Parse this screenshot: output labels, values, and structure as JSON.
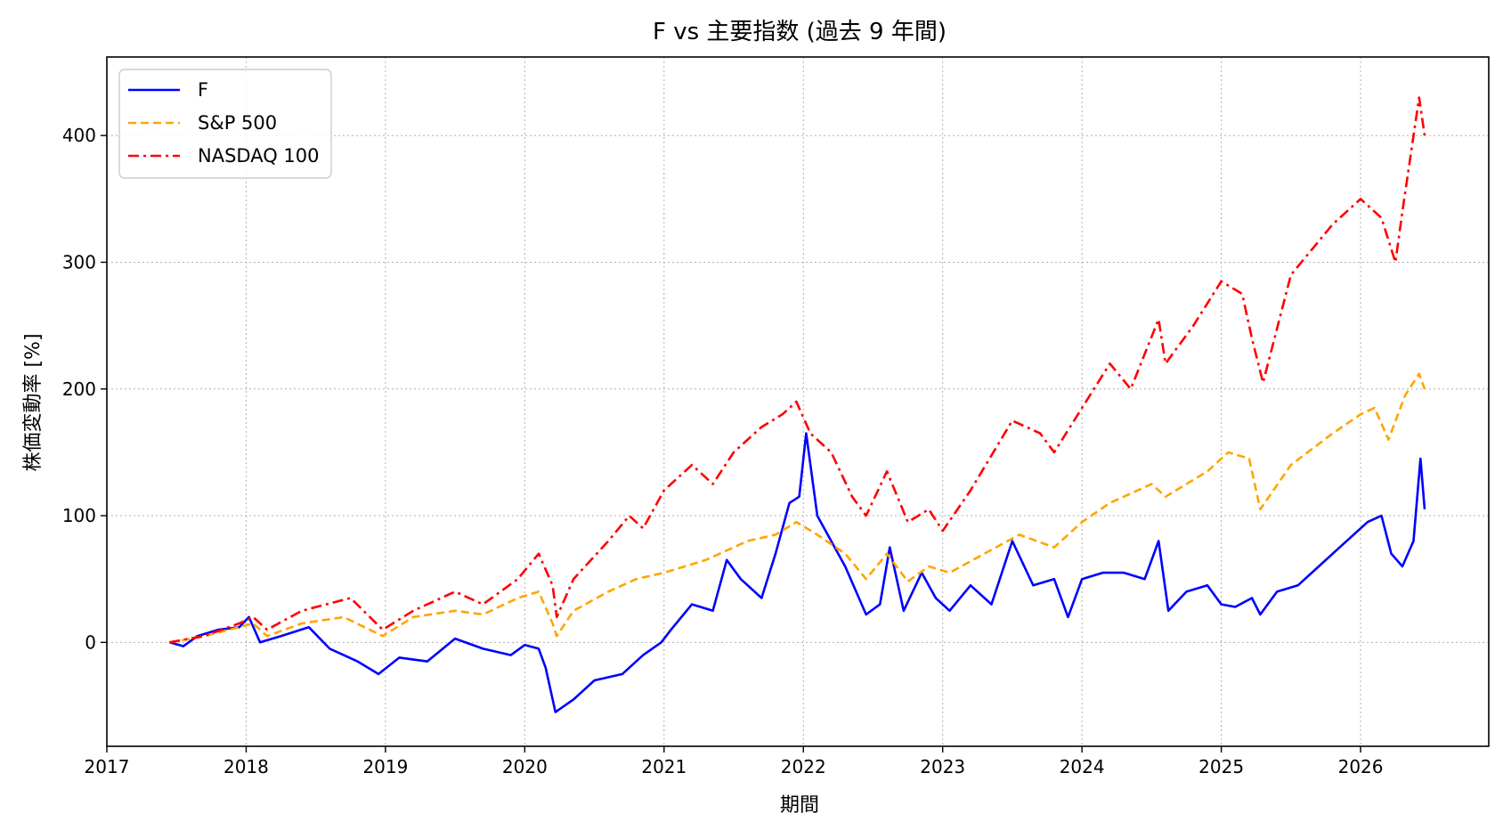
{
  "chart_data": {
    "type": "line",
    "title": "F vs 主要指数 (過去 9 年間)",
    "xlabel": "期間",
    "ylabel": "株価変動率 [%]",
    "xlim": [
      2017.0,
      2026.92
    ],
    "ylim": [
      -82,
      462
    ],
    "x_ticks": [
      2017,
      2018,
      2019,
      2020,
      2021,
      2022,
      2023,
      2024,
      2025,
      2026
    ],
    "x_tick_labels": [
      "2017",
      "2018",
      "2019",
      "2020",
      "2021",
      "2022",
      "2023",
      "2024",
      "2025",
      "2026"
    ],
    "y_ticks": [
      0,
      100,
      200,
      300,
      400
    ],
    "y_tick_labels": [
      "0",
      "100",
      "200",
      "300",
      "400"
    ],
    "grid": true,
    "legend_position": "top-left",
    "series": [
      {
        "name": "F",
        "color": "#0000ff",
        "dash": "solid",
        "x": [
          2017.45,
          2017.55,
          2017.65,
          2017.8,
          2017.95,
          2018.02,
          2018.1,
          2018.25,
          2018.45,
          2018.6,
          2018.8,
          2018.95,
          2019.1,
          2019.3,
          2019.5,
          2019.7,
          2019.9,
          2020.0,
          2020.1,
          2020.15,
          2020.22,
          2020.35,
          2020.5,
          2020.7,
          2020.85,
          2020.98,
          2021.05,
          2021.2,
          2021.35,
          2021.45,
          2021.55,
          2021.7,
          2021.8,
          2021.9,
          2021.97,
          2022.02,
          2022.1,
          2022.2,
          2022.3,
          2022.45,
          2022.55,
          2022.62,
          2022.72,
          2022.85,
          2022.95,
          2023.05,
          2023.2,
          2023.35,
          2023.5,
          2023.65,
          2023.8,
          2023.9,
          2024.0,
          2024.15,
          2024.3,
          2024.45,
          2024.55,
          2024.62,
          2024.75,
          2024.9,
          2025.0,
          2025.1,
          2025.22,
          2025.28,
          2025.4,
          2025.55,
          2025.7,
          2025.85,
          2025.95,
          2026.05,
          2026.15,
          2026.22,
          2026.3,
          2026.38,
          2026.43,
          2026.46
        ],
        "y": [
          0,
          -3,
          5,
          10,
          12,
          20,
          0,
          5,
          12,
          -5,
          -15,
          -25,
          -12,
          -15,
          3,
          -5,
          -10,
          -2,
          -5,
          -20,
          -55,
          -45,
          -30,
          -25,
          -10,
          0,
          10,
          30,
          25,
          65,
          50,
          35,
          70,
          110,
          115,
          165,
          100,
          80,
          60,
          22,
          30,
          75,
          25,
          55,
          35,
          25,
          45,
          30,
          80,
          45,
          50,
          20,
          50,
          55,
          55,
          50,
          80,
          25,
          40,
          45,
          30,
          28,
          35,
          22,
          40,
          45,
          60,
          75,
          85,
          95,
          100,
          70,
          60,
          80,
          145,
          105
        ]
      },
      {
        "name": "S&P 500",
        "color": "#ffa500",
        "dash": "dashed",
        "x": [
          2017.45,
          2017.7,
          2017.95,
          2018.05,
          2018.15,
          2018.4,
          2018.7,
          2018.98,
          2019.2,
          2019.5,
          2019.7,
          2019.95,
          2020.1,
          2020.2,
          2020.23,
          2020.35,
          2020.6,
          2020.8,
          2021.0,
          2021.3,
          2021.6,
          2021.8,
          2021.95,
          2022.1,
          2022.3,
          2022.45,
          2022.6,
          2022.75,
          2022.9,
          2023.05,
          2023.3,
          2023.55,
          2023.8,
          2024.0,
          2024.2,
          2024.5,
          2024.6,
          2024.9,
          2025.05,
          2025.2,
          2025.28,
          2025.5,
          2025.8,
          2026.0,
          2026.1,
          2026.2,
          2026.32,
          2026.42,
          2026.46
        ],
        "y": [
          0,
          5,
          12,
          15,
          5,
          15,
          20,
          5,
          20,
          25,
          22,
          35,
          40,
          15,
          5,
          25,
          40,
          50,
          55,
          65,
          80,
          85,
          95,
          85,
          70,
          50,
          70,
          48,
          60,
          55,
          70,
          85,
          75,
          95,
          110,
          125,
          115,
          135,
          150,
          145,
          105,
          140,
          165,
          180,
          185,
          160,
          195,
          212,
          200
        ]
      },
      {
        "name": "NASDAQ 100",
        "color": "#ff0000",
        "dash": "dashdot",
        "x": [
          2017.45,
          2017.7,
          2017.95,
          2018.05,
          2018.15,
          2018.4,
          2018.75,
          2018.98,
          2019.2,
          2019.5,
          2019.7,
          2019.95,
          2020.1,
          2020.2,
          2020.23,
          2020.35,
          2020.6,
          2020.75,
          2020.85,
          2021.0,
          2021.2,
          2021.35,
          2021.5,
          2021.7,
          2021.85,
          2021.95,
          2022.05,
          2022.2,
          2022.35,
          2022.45,
          2022.6,
          2022.75,
          2022.9,
          2023.0,
          2023.2,
          2023.5,
          2023.7,
          2023.8,
          2024.0,
          2024.2,
          2024.35,
          2024.55,
          2024.6,
          2024.8,
          2025.0,
          2025.15,
          2025.22,
          2025.3,
          2025.5,
          2025.8,
          2026.0,
          2026.1,
          2026.15,
          2026.25,
          2026.3,
          2026.42,
          2026.46
        ],
        "y": [
          0,
          5,
          15,
          20,
          10,
          25,
          35,
          10,
          25,
          40,
          30,
          50,
          70,
          45,
          20,
          50,
          80,
          100,
          90,
          120,
          140,
          125,
          150,
          170,
          180,
          190,
          165,
          150,
          115,
          100,
          135,
          95,
          105,
          88,
          120,
          175,
          165,
          150,
          185,
          220,
          200,
          255,
          220,
          250,
          285,
          275,
          240,
          205,
          290,
          330,
          350,
          340,
          335,
          300,
          340,
          430,
          400
        ]
      }
    ]
  }
}
